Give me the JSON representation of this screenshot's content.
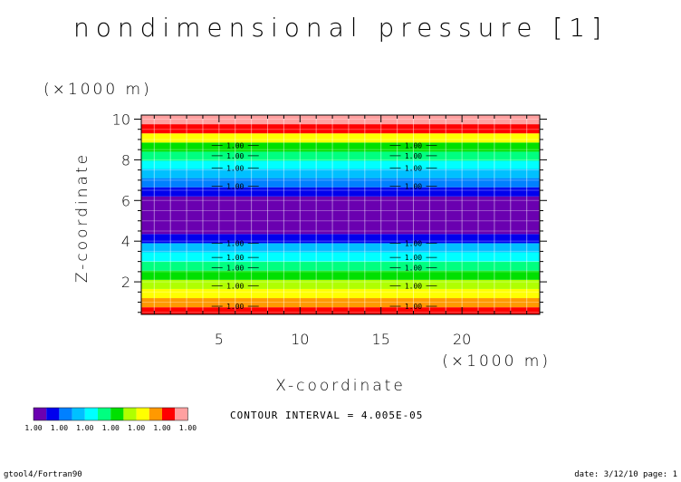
{
  "chart_data": {
    "type": "heatmap",
    "title": "nondimensional pressure [1]",
    "xlabel": "X-coordinate",
    "ylabel": "Z-coordinate",
    "x_unit": "(×1000 m)",
    "z_unit": "(×1000 m)",
    "xlim": [
      0.2,
      24.8
    ],
    "zlim": [
      0.4,
      10.2
    ],
    "x_ticks": [
      5,
      10,
      15,
      20
    ],
    "z_ticks": [
      2,
      4,
      6,
      8,
      10
    ],
    "grid": true,
    "contour_interval": "CONTOUR INTERVAL = 4.005E-05",
    "legend_placement": "bottom-left",
    "colorbar": {
      "colors": [
        "#6a00b0",
        "#0000ee",
        "#0080ff",
        "#00c0ff",
        "#00ffff",
        "#00ff80",
        "#00e000",
        "#b0ff00",
        "#ffff00",
        "#ff9900",
        "#ff0000",
        "#ffa0a0"
      ],
      "labels": [
        "1.00",
        "1.00",
        "1.00",
        "1.00",
        "1.00",
        "1.00",
        "1.00"
      ]
    },
    "bands": [
      {
        "z0": 0.4,
        "z1": 0.75,
        "color": "#ff0000"
      },
      {
        "z0": 0.75,
        "z1": 1.2,
        "color": "#ff9900"
      },
      {
        "z0": 1.2,
        "z1": 1.65,
        "color": "#ffff00"
      },
      {
        "z0": 1.65,
        "z1": 2.1,
        "color": "#b0ff00"
      },
      {
        "z0": 2.1,
        "z1": 2.55,
        "color": "#00e000"
      },
      {
        "z0": 2.55,
        "z1": 3.0,
        "color": "#00ff80"
      },
      {
        "z0": 3.0,
        "z1": 3.45,
        "color": "#00ffff"
      },
      {
        "z0": 3.45,
        "z1": 3.9,
        "color": "#00c0ff"
      },
      {
        "z0": 3.9,
        "z1": 4.35,
        "color": "#0000ee"
      },
      {
        "z0": 4.35,
        "z1": 6.2,
        "color": "#6a00b0"
      },
      {
        "z0": 6.2,
        "z1": 6.65,
        "color": "#0000ee"
      },
      {
        "z0": 6.65,
        "z1": 7.1,
        "color": "#0080ff"
      },
      {
        "z0": 7.1,
        "z1": 7.55,
        "color": "#00c0ff"
      },
      {
        "z0": 7.55,
        "z1": 7.95,
        "color": "#00ffff"
      },
      {
        "z0": 7.95,
        "z1": 8.4,
        "color": "#00ff80"
      },
      {
        "z0": 8.4,
        "z1": 8.85,
        "color": "#00e000"
      },
      {
        "z0": 8.85,
        "z1": 9.3,
        "color": "#ffff00"
      },
      {
        "z0": 9.3,
        "z1": 9.75,
        "color": "#ff0000"
      },
      {
        "z0": 9.75,
        "z1": 10.2,
        "color": "#ffa0a0"
      }
    ],
    "contour_label_text": "1.00",
    "contour_label_x": [
      6,
      17
    ],
    "contour_label_z": [
      0.8,
      1.8,
      2.7,
      3.2,
      3.9,
      6.7,
      7.6,
      8.2,
      8.7
    ]
  },
  "footer": {
    "left": "gtool4/Fortran90",
    "right": "date: 3/12/10 page: 1"
  }
}
